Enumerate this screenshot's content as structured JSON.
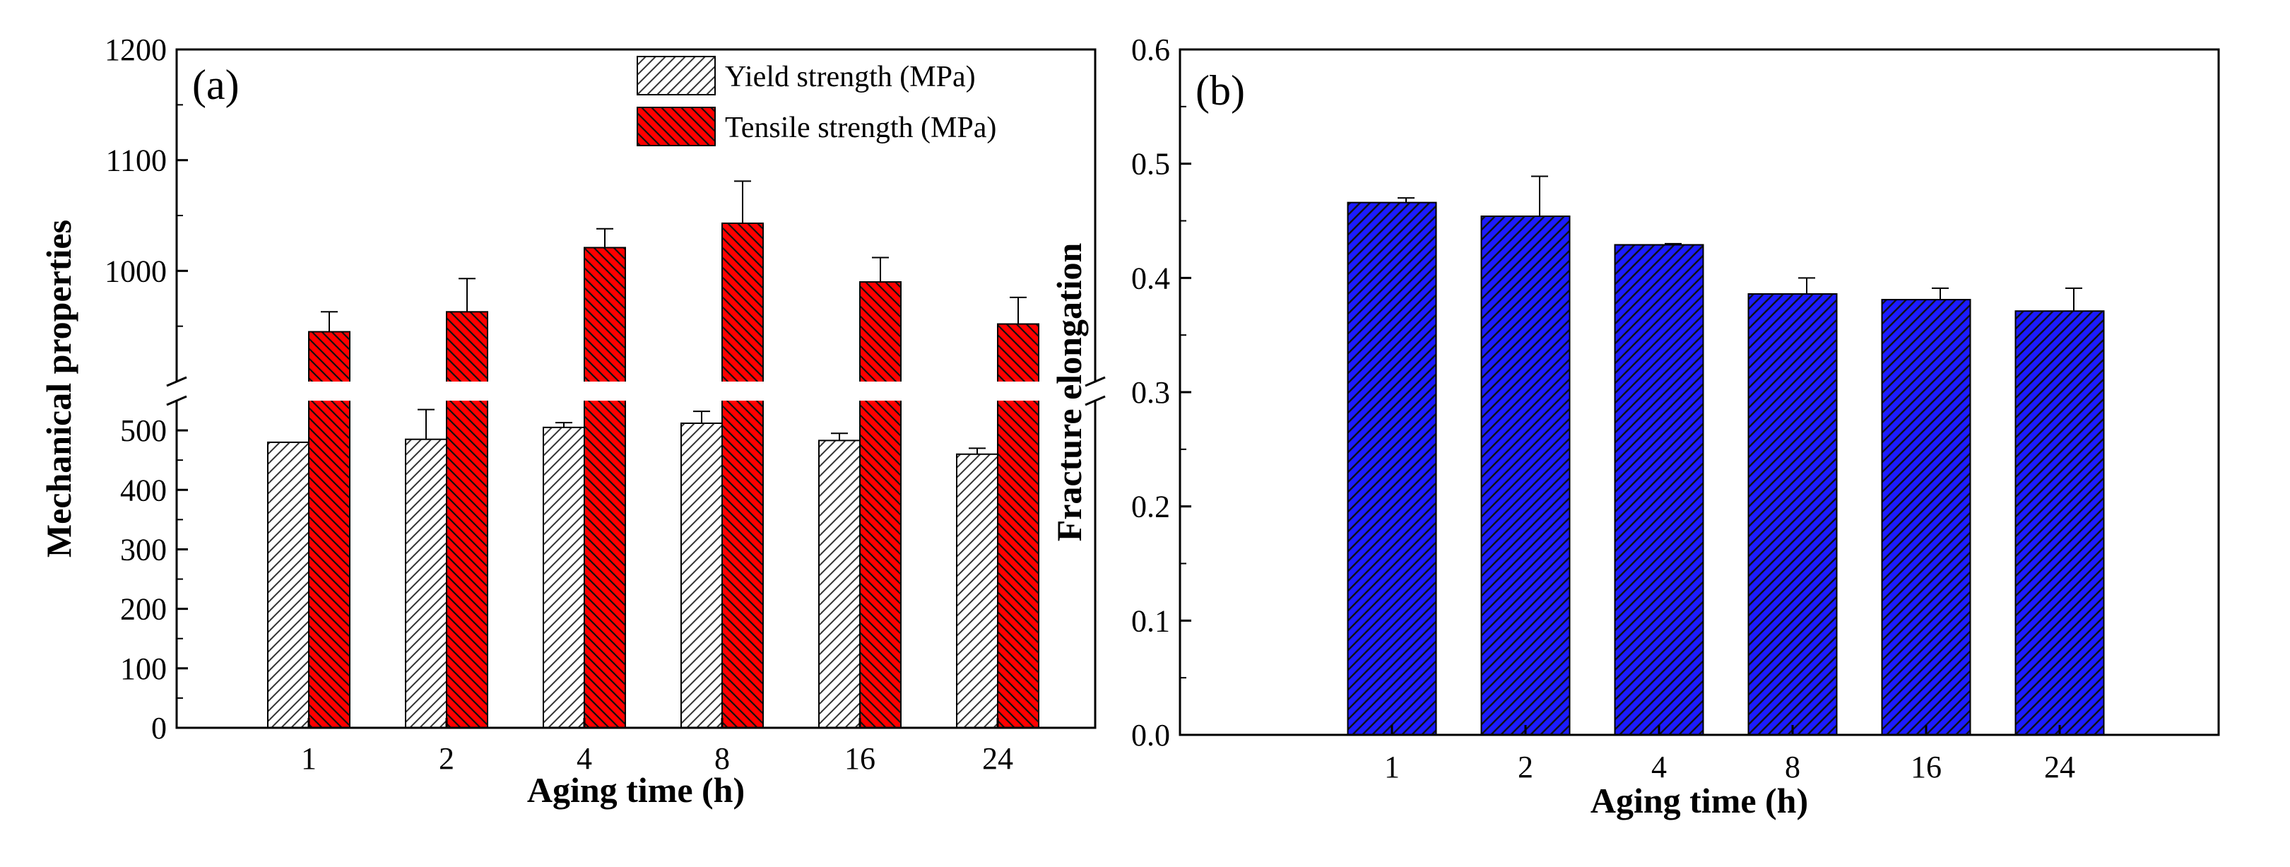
{
  "chart_data": [
    {
      "panel_label": "(a)",
      "type": "bar",
      "categories": [
        "1",
        "2",
        "4",
        "8",
        "16",
        "24"
      ],
      "xlabel": "Aging time (h)",
      "ylabel": "Mechanical properties",
      "y_axis_break": true,
      "y_lower_range": [
        0,
        550
      ],
      "y_upper_range": [
        900,
        1200
      ],
      "y_lower_ticks": [
        0,
        100,
        200,
        300,
        400,
        500
      ],
      "y_upper_ticks": [
        1000,
        1100,
        1200
      ],
      "legend_position": "top-right",
      "series": [
        {
          "name": "Yield strength (MPa)",
          "color": "#ffffff",
          "hatch": "light diagonal",
          "values": [
            480,
            485,
            505,
            512,
            483,
            460
          ],
          "errors": [
            0,
            50,
            8,
            20,
            12,
            10
          ]
        },
        {
          "name": "Tensile strength (MPa)",
          "color": "#ff0000",
          "hatch": "dense diagonal",
          "values": [
            945,
            963,
            1021,
            1043,
            990,
            952
          ],
          "errors": [
            18,
            30,
            17,
            38,
            22,
            24
          ]
        }
      ]
    },
    {
      "panel_label": "(b)",
      "type": "bar",
      "categories": [
        "1",
        "2",
        "4",
        "8",
        "16",
        "24"
      ],
      "xlabel": "Aging time (h)",
      "ylabel": "Fracture elongation",
      "ylim": [
        0,
        0.6
      ],
      "yticks": [
        "0.0",
        "0.1",
        "0.2",
        "0.3",
        "0.4",
        "0.5",
        "0.6"
      ],
      "series": [
        {
          "color": "#1c1cff",
          "hatch": "dense diagonal",
          "values": [
            0.466,
            0.454,
            0.429,
            0.386,
            0.381,
            0.371
          ],
          "errors": [
            0.004,
            0.035,
            0.001,
            0.014,
            0.01,
            0.02
          ]
        }
      ]
    }
  ]
}
